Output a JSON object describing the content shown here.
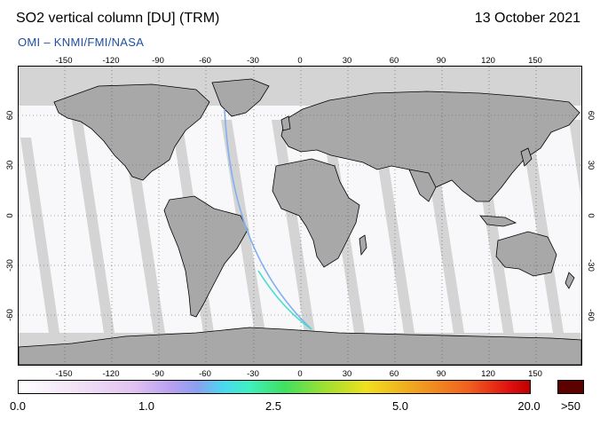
{
  "header": {
    "title": "SO2 vertical column [DU] (TRM)",
    "date": "13 October 2021",
    "provider": "OMI  –  KNMI/FMI/NASA"
  },
  "map": {
    "projection": "equirectangular",
    "lon_ticks": [
      "-150",
      "-120",
      "-90",
      "-60",
      "-30",
      "0",
      "30",
      "60",
      "90",
      "120",
      "150"
    ],
    "lat_ticks": [
      "60",
      "30",
      "0",
      "-30",
      "-60"
    ],
    "land_color": "#a8a8a8",
    "swath_gap_color": "#d4d4d4",
    "background_color": "#f8f7f9"
  },
  "colorbar": {
    "labels": [
      "0.0",
      "1.0",
      "2.5",
      "5.0",
      "20.0"
    ],
    "over_label": ">50",
    "over_color": "#5c0000",
    "colors": [
      "#ffffff",
      "#e3c4f0",
      "#8aa0f0",
      "#40f0c0",
      "#a0e030",
      "#f0e020",
      "#f06020",
      "#c00000"
    ]
  }
}
